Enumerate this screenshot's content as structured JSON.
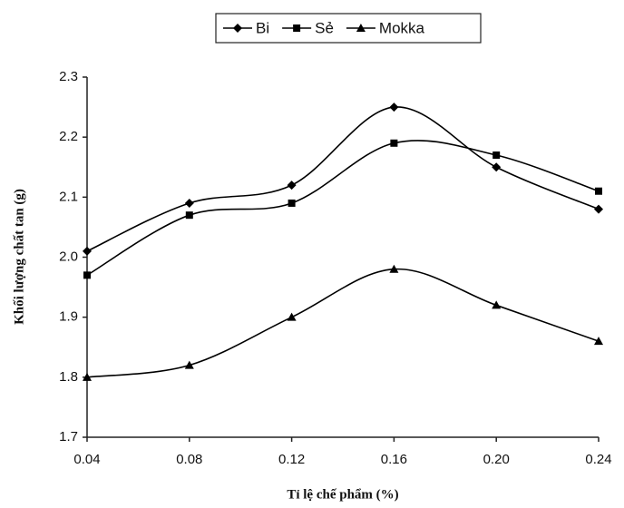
{
  "chart_data": {
    "type": "line",
    "x_label": "Tỉ lệ chế phẩm (%)",
    "y_label": "Khối lượng chất tan (g)",
    "x": [
      0.04,
      0.08,
      0.12,
      0.16,
      0.2,
      0.24
    ],
    "series": [
      {
        "name": "Bi",
        "color": "#000000",
        "marker": "diamond",
        "values": [
          2.01,
          2.09,
          2.12,
          2.25,
          2.15,
          2.08
        ]
      },
      {
        "name": "Sẻ",
        "color": "#000000",
        "marker": "square",
        "values": [
          1.97,
          2.07,
          2.09,
          2.19,
          2.17,
          2.11
        ]
      },
      {
        "name": "Mokka",
        "color": "#000000",
        "marker": "triangle",
        "values": [
          1.8,
          1.82,
          1.9,
          1.98,
          1.92,
          1.86
        ]
      }
    ],
    "xlim": [
      0.04,
      0.24
    ],
    "xticks": [
      0.04,
      0.08,
      0.12,
      0.16,
      {
        "value": 0.2,
        "label": "0.20"
      },
      0.24
    ],
    "ylim": [
      1.7,
      2.3
    ],
    "yticks": [
      1.7,
      1.8,
      1.9,
      {
        "value": 2,
        "label": "2.0"
      },
      2.1,
      2.2,
      2.3
    ],
    "grid": false,
    "legend": "top",
    "smooth": true
  }
}
